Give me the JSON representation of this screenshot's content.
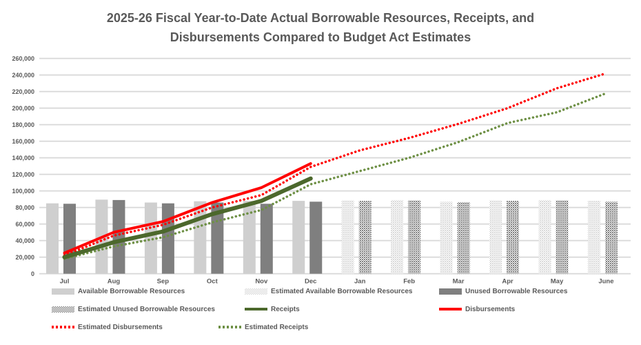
{
  "title": {
    "line1": "2025-26 Fiscal Year-to-Date Actual Borrowable Resources, Receipts, and",
    "line2": "Disbursements Compared to Budget Act Estimates"
  },
  "colors": {
    "background": "#ffffff",
    "text": "#595959",
    "grid": "#d9d9d9",
    "bar_light": "#cfcfcf",
    "bar_dark": "#7f7f7f",
    "receipts_green": "#4c682c",
    "est_receipts_green": "#6e9045",
    "disbursements_red": "#ff0000"
  },
  "chart_data": {
    "type": "combo",
    "title": "2025-26 Fiscal Year-to-Date Actual Borrowable Resources, Receipts, and Disbursements Compared to Budget Act Estimates",
    "xlabel": "",
    "ylabel": "",
    "ylim": [
      0,
      260000
    ],
    "y_step": 20000,
    "grid": true,
    "legend_position": "bottom",
    "categories": [
      "Jul",
      "Aug",
      "Sep",
      "Oct",
      "Nov",
      "Dec",
      "Jan",
      "Feb",
      "Mar",
      "Apr",
      "May",
      "June"
    ],
    "y_ticks": [
      "0",
      "20,000",
      "40,000",
      "60,000",
      "80,000",
      "100,000",
      "120,000",
      "140,000",
      "160,000",
      "180,000",
      "200,000",
      "220,000",
      "240,000",
      "260,000"
    ],
    "series": [
      {
        "name": "Available Borrowable Resources",
        "type": "bar",
        "style": "solid",
        "slot": 0,
        "color": "#cfcfcf",
        "values": [
          85000,
          89500,
          86000,
          87500,
          88000,
          88000,
          null,
          null,
          null,
          null,
          null,
          null
        ]
      },
      {
        "name": "Estimated Available Borrowable Resources",
        "type": "bar",
        "style": "pattern",
        "slot": 0,
        "color": "#d9d9d9",
        "values": [
          null,
          null,
          null,
          null,
          null,
          null,
          88500,
          89000,
          87000,
          88500,
          89000,
          88000
        ]
      },
      {
        "name": "Unused Borrowable Resources",
        "type": "bar",
        "style": "solid",
        "slot": 1,
        "color": "#7f7f7f",
        "values": [
          84500,
          89000,
          85000,
          86000,
          84500,
          87000,
          null,
          null,
          null,
          null,
          null,
          null
        ]
      },
      {
        "name": "Estimated Unused Borrowable Resources",
        "type": "bar",
        "style": "pattern",
        "slot": 1,
        "color": "#7f7f7f",
        "values": [
          null,
          null,
          null,
          null,
          null,
          null,
          88000,
          88500,
          86500,
          88000,
          88500,
          87000
        ]
      },
      {
        "name": "Estimated Receipts",
        "type": "line",
        "style": "dotted",
        "color": "#6e9045",
        "width": 3.5,
        "values": [
          18000,
          33000,
          44000,
          62000,
          77000,
          108000,
          124000,
          140000,
          159000,
          182000,
          195000,
          218000
        ]
      },
      {
        "name": "Estimated Disbursements",
        "type": "line",
        "style": "dotted",
        "color": "#ff0000",
        "width": 3.5,
        "values": [
          22000,
          46000,
          59000,
          80000,
          95000,
          129000,
          149000,
          164000,
          181000,
          200000,
          224000,
          242000
        ]
      },
      {
        "name": "Receipts",
        "type": "line",
        "style": "solid",
        "color": "#4c682c",
        "width": 6,
        "values": [
          20000,
          38000,
          51000,
          72000,
          88000,
          115000,
          null,
          null,
          null,
          null,
          null,
          null
        ]
      },
      {
        "name": "Disbursements",
        "type": "line",
        "style": "solid",
        "color": "#ff0000",
        "width": 4,
        "values": [
          25000,
          50000,
          63000,
          86000,
          104000,
          133000,
          null,
          null,
          null,
          null,
          null,
          null
        ]
      }
    ]
  },
  "legend": {
    "rows": [
      [
        {
          "label": "Available Borrowable Resources",
          "swatch": "bar",
          "color": "#cfcfcf",
          "pattern": false
        },
        {
          "label": "Estimated Available Borrowable Resources",
          "swatch": "bar",
          "color": "#d9d9d9",
          "pattern": true
        },
        {
          "label": "Unused Borrowable Resources",
          "swatch": "bar",
          "color": "#7f7f7f",
          "pattern": false
        }
      ],
      [
        {
          "label": "Estimated Unused Borrowable Resources",
          "swatch": "bar",
          "color": "#7f7f7f",
          "pattern": true
        },
        {
          "label": "Receipts",
          "swatch": "line",
          "color": "#4c682c",
          "dotted": false
        },
        {
          "label": "Disbursements",
          "swatch": "line",
          "color": "#ff0000",
          "dotted": false
        }
      ],
      [
        {
          "label": "Estimated Disbursements",
          "swatch": "line",
          "color": "#ff0000",
          "dotted": true
        },
        {
          "label": "Estimated Receipts",
          "swatch": "line",
          "color": "#6e9045",
          "dotted": true
        }
      ]
    ]
  }
}
